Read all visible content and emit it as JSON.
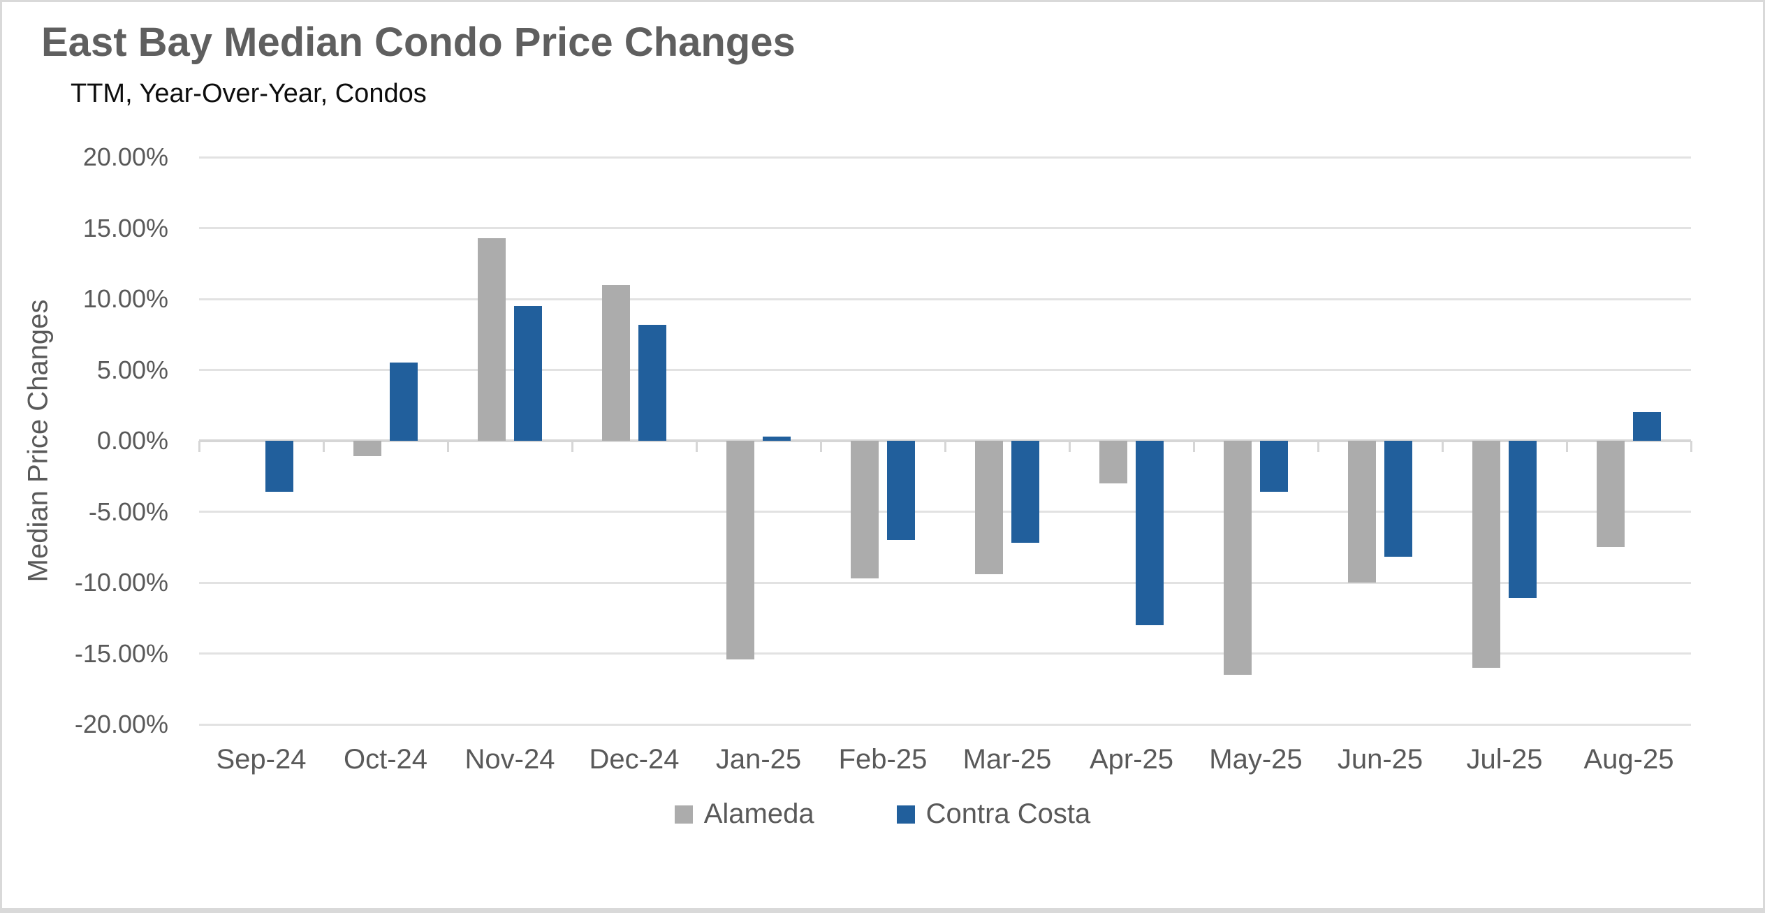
{
  "chart_data": {
    "type": "bar",
    "title": "East Bay Median Condo Price Changes",
    "subtitle": "TTM, Year-Over-Year, Condos",
    "xlabel": "",
    "ylabel": "Median Price Changes",
    "ylim": [
      -20,
      20
    ],
    "ytick_step": 5,
    "ytick_labels": [
      "20.00%",
      "15.00%",
      "10.00%",
      "5.00%",
      "0.00%",
      "-5.00%",
      "-10.00%",
      "-15.00%",
      "-20.00%"
    ],
    "grid": true,
    "legend_position": "bottom",
    "categories": [
      "Sep-24",
      "Oct-24",
      "Nov-24",
      "Dec-24",
      "Jan-25",
      "Feb-25",
      "Mar-25",
      "Apr-25",
      "May-25",
      "Jun-25",
      "Jul-25",
      "Aug-25"
    ],
    "series": [
      {
        "name": "Alameda",
        "color": "#acacac",
        "values": [
          0.0,
          -1.1,
          14.3,
          11.0,
          -15.4,
          -9.7,
          -9.4,
          -3.0,
          -16.5,
          -10.0,
          -16.0,
          -7.5
        ]
      },
      {
        "name": "Contra Costa",
        "color": "#215f9c",
        "values": [
          -3.6,
          5.5,
          9.5,
          8.2,
          0.3,
          -7.0,
          -7.2,
          -13.0,
          -3.6,
          -8.2,
          -11.1,
          2.0
        ]
      }
    ]
  }
}
